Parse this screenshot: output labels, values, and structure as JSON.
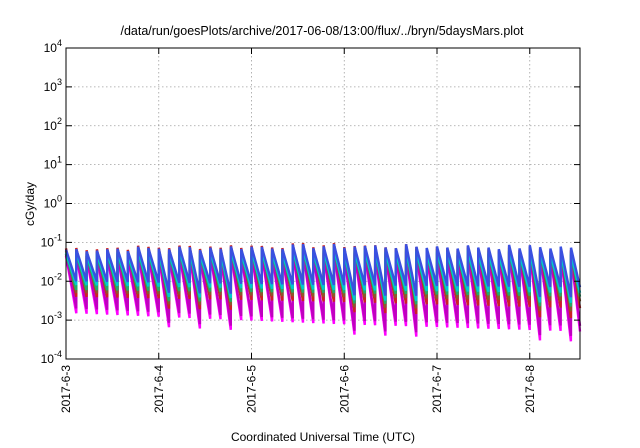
{
  "chart_data": {
    "type": "line",
    "title": "/data/run/goesPlots/archive/2017-06-08/13:00/flux/../bryn/5daysMars.plot",
    "xlabel": "Coordinated Universal Time (UTC)",
    "ylabel": "cGy/day",
    "yscale": "log",
    "ylim": [
      0.0001,
      10000
    ],
    "y_ticks": [
      {
        "base": "10",
        "exp": "-4"
      },
      {
        "base": "10",
        "exp": "-3"
      },
      {
        "base": "10",
        "exp": "-2"
      },
      {
        "base": "10",
        "exp": "-1"
      },
      {
        "base": "10",
        "exp": "0"
      },
      {
        "base": "10",
        "exp": "1"
      },
      {
        "base": "10",
        "exp": "2"
      },
      {
        "base": "10",
        "exp": "3"
      },
      {
        "base": "10",
        "exp": "4"
      }
    ],
    "xlim": [
      "2017-06-03 00:00",
      "2017-06-08 13:00"
    ],
    "x_ticks": [
      "2017-6-3",
      "2017-6-4",
      "2017-6-5",
      "2017-6-6",
      "2017-6-7",
      "2017-6-8"
    ],
    "grid": true,
    "legend": "none",
    "cycles_per_day": 9,
    "series": [
      {
        "color": "#ff00ff",
        "peaks": [
          0.045,
          0.05,
          0.048
        ],
        "troughs": [
          0.0015,
          0.0008,
          0.0005
        ]
      },
      {
        "color": "#c000c0",
        "peaks": [
          0.05,
          0.055,
          0.05
        ],
        "troughs": [
          0.002,
          0.001,
          0.0007
        ]
      },
      {
        "color": "#cc2222",
        "peaks": [
          0.07,
          0.085,
          0.065
        ],
        "troughs": [
          0.004,
          0.003,
          0.002
        ]
      },
      {
        "color": "#8a5a2a",
        "peaks": [
          0.06,
          0.075,
          0.06
        ],
        "troughs": [
          0.005,
          0.004,
          0.003
        ]
      },
      {
        "color": "#22aa66",
        "peaks": [
          0.05,
          0.06,
          0.05
        ],
        "troughs": [
          0.006,
          0.005,
          0.004
        ]
      },
      {
        "color": "#00c8d0",
        "peaks": [
          0.055,
          0.065,
          0.055
        ],
        "troughs": [
          0.008,
          0.006,
          0.005
        ]
      },
      {
        "color": "#3a50e0",
        "peaks": [
          0.065,
          0.08,
          0.075
        ],
        "troughs": [
          0.01,
          0.008,
          0.007
        ]
      }
    ]
  }
}
